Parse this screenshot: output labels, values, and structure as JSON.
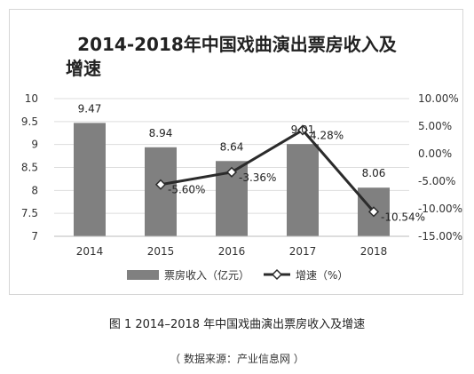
{
  "chart_data": {
    "type": "bar",
    "title_lines": [
      "2014-2018年中国戏曲演出票房收入及",
      "增速"
    ],
    "categories": [
      "2014",
      "2015",
      "2016",
      "2017",
      "2018"
    ],
    "series": [
      {
        "name": "票房收入（亿元）",
        "type": "bar",
        "axis": "left",
        "values": [
          9.47,
          8.94,
          8.64,
          9.01,
          8.06
        ],
        "labels": [
          "9.47",
          "8.94",
          "8.64",
          "9.01",
          "8.06"
        ],
        "color": "#808080"
      },
      {
        "name": "增速（%）",
        "type": "line",
        "axis": "right",
        "values": [
          null,
          -5.6,
          -3.36,
          4.28,
          -10.54
        ],
        "labels": [
          "",
          "-5.60%",
          "-3.36%",
          "4.28%",
          "-10.54%"
        ],
        "color": "#2b2b2b"
      }
    ],
    "left_axis": {
      "ylim": [
        7,
        10
      ],
      "ticks": [
        "7",
        "7.5",
        "8",
        "8.5",
        "9",
        "9.5",
        "10"
      ]
    },
    "right_axis": {
      "ylim": [
        -15,
        10
      ],
      "ticks": [
        "-15.00%",
        "-10.00%",
        "-5.00%",
        "0.00%",
        "5.00%",
        "10.00%"
      ]
    },
    "grid": true,
    "legend_position": "bottom"
  },
  "caption": "图 1   2014–2018 年中国戏曲演出票房收入及增速",
  "source": "（ 数据来源：产业信息网 ）"
}
